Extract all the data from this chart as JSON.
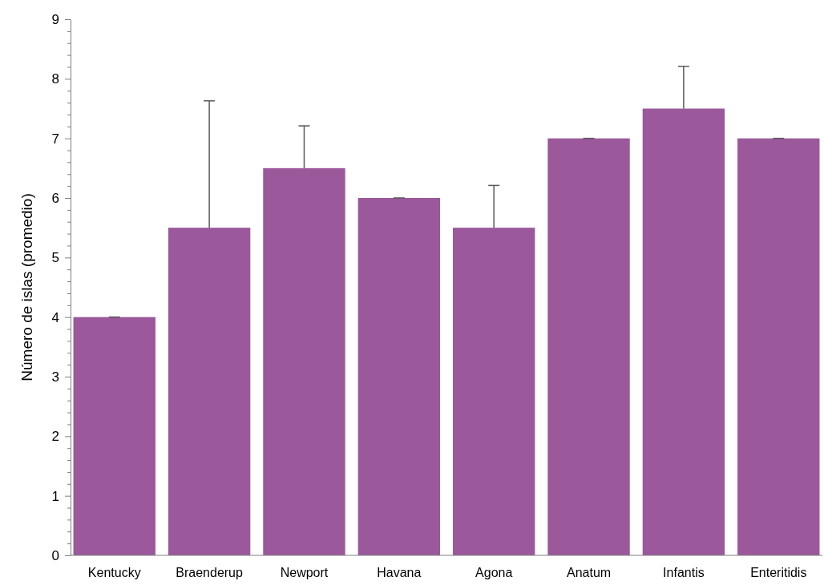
{
  "chart_data": {
    "type": "bar",
    "ylabel": "Número de islas (promedio)",
    "categories": [
      "Kentucky",
      "Braenderup",
      "Newport",
      "Havana",
      "Agona",
      "Anatum",
      "Infantis",
      "Enteritidis"
    ],
    "values": [
      4,
      5.5,
      6.5,
      6,
      5.5,
      7,
      7.5,
      7
    ],
    "errors": [
      [
        4,
        4
      ],
      [
        5.5,
        7.63
      ],
      [
        6.5,
        7.21
      ],
      [
        6,
        6
      ],
      [
        5.5,
        6.21
      ],
      [
        7,
        7
      ],
      [
        7.5,
        8.21
      ],
      [
        7,
        7
      ]
    ],
    "color": "#9b589b",
    "ylim": [
      0,
      9
    ],
    "yticks": [
      0,
      {
        "value": 0.2,
        "label": null
      },
      {
        "value": 0.4,
        "label": null
      },
      {
        "value": 0.6,
        "label": null
      },
      {
        "value": 0.8,
        "label": null
      },
      1,
      {
        "value": 1.2,
        "label": null
      },
      {
        "value": 1.4,
        "label": null
      },
      {
        "value": 1.6,
        "label": null
      },
      {
        "value": 1.8,
        "label": null
      },
      2,
      {
        "value": 2.2,
        "label": null
      },
      {
        "value": 2.4,
        "label": null
      },
      {
        "value": 2.6,
        "label": null
      },
      {
        "value": 2.8,
        "label": null
      },
      3,
      {
        "value": 3.2,
        "label": null
      },
      {
        "value": 3.4,
        "label": null
      },
      {
        "value": 3.6,
        "label": null
      },
      {
        "value": 3.8,
        "label": null
      },
      4,
      {
        "value": 4.2,
        "label": null
      },
      {
        "value": 4.4,
        "label": null
      },
      {
        "value": 4.6,
        "label": null
      },
      {
        "value": 4.8,
        "label": null
      },
      5,
      {
        "value": 5.2,
        "label": null
      },
      {
        "value": 5.4,
        "label": null
      },
      {
        "value": 5.6,
        "label": null
      },
      {
        "value": 5.8,
        "label": null
      },
      6,
      {
        "value": 6.2,
        "label": null
      },
      {
        "value": 6.4,
        "label": null
      },
      {
        "value": 6.6,
        "label": null
      },
      {
        "value": 6.8,
        "label": null
      },
      7,
      {
        "value": 7.2,
        "label": null
      },
      {
        "value": 7.4,
        "label": null
      },
      {
        "value": 7.6,
        "label": null
      },
      {
        "value": 7.8,
        "label": null
      },
      8,
      {
        "value": 8.2,
        "label": null
      },
      {
        "value": 8.4,
        "label": null
      },
      {
        "value": 8.6,
        "label": null
      },
      {
        "value": 8.8,
        "label": null
      },
      9
    ]
  }
}
